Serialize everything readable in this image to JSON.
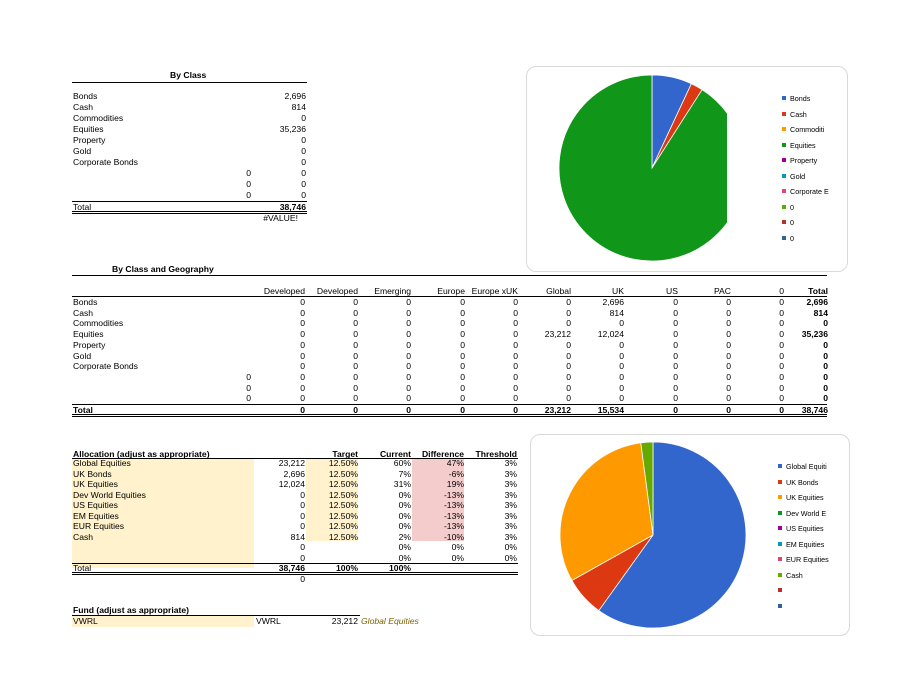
{
  "by_class": {
    "title": "By Class",
    "rows": [
      {
        "label": "Bonds",
        "value": "2,696"
      },
      {
        "label": "Cash",
        "value": "814"
      },
      {
        "label": "Commodities",
        "value": "0"
      },
      {
        "label": "Equities",
        "value": "35,236"
      },
      {
        "label": "Property",
        "value": "0"
      },
      {
        "label": "Gold",
        "value": "0"
      },
      {
        "label": "Corporate Bonds",
        "value": "0"
      },
      {
        "label": "0",
        "value": "0"
      },
      {
        "label": "0",
        "value": "0"
      },
      {
        "label": "0",
        "value": "0"
      }
    ],
    "total_label": "Total",
    "total_value": "38,746",
    "error": "#VALUE!"
  },
  "chart1": {
    "legend": [
      "Bonds",
      "Cash",
      "Commoditi",
      "Equities",
      "Property",
      "Gold",
      "Corporate E",
      "0",
      "0",
      "0"
    ],
    "colors": [
      "#3366cc",
      "#dc3912",
      "#ff9900",
      "#109618",
      "#990099",
      "#0099c6",
      "#dd4477",
      "#66aa00",
      "#b82e2e",
      "#316395"
    ]
  },
  "by_geo": {
    "title": "By Class and Geography",
    "headers": [
      "Developed",
      "Developed",
      "Emerging",
      "Europe",
      "Europe xUK",
      "Global",
      "UK",
      "US",
      "PAC",
      "0",
      "Total"
    ],
    "rows": [
      {
        "label": "Bonds",
        "cells": [
          "0",
          "0",
          "0",
          "0",
          "0",
          "0",
          "2,696",
          "0",
          "0",
          "0",
          "2,696"
        ]
      },
      {
        "label": "Cash",
        "cells": [
          "0",
          "0",
          "0",
          "0",
          "0",
          "0",
          "814",
          "0",
          "0",
          "0",
          "814"
        ]
      },
      {
        "label": "Commodities",
        "cells": [
          "0",
          "0",
          "0",
          "0",
          "0",
          "0",
          "0",
          "0",
          "0",
          "0",
          "0"
        ]
      },
      {
        "label": "Equities",
        "cells": [
          "0",
          "0",
          "0",
          "0",
          "0",
          "23,212",
          "12,024",
          "0",
          "0",
          "0",
          "35,236"
        ]
      },
      {
        "label": "Property",
        "cells": [
          "0",
          "0",
          "0",
          "0",
          "0",
          "0",
          "0",
          "0",
          "0",
          "0",
          "0"
        ]
      },
      {
        "label": "Gold",
        "cells": [
          "0",
          "0",
          "0",
          "0",
          "0",
          "0",
          "0",
          "0",
          "0",
          "0",
          "0"
        ]
      },
      {
        "label": "Corporate Bonds",
        "cells": [
          "0",
          "0",
          "0",
          "0",
          "0",
          "0",
          "0",
          "0",
          "0",
          "0",
          "0"
        ]
      },
      {
        "label": "0",
        "cells": [
          "0",
          "0",
          "0",
          "0",
          "0",
          "0",
          "0",
          "0",
          "0",
          "0",
          "0"
        ]
      },
      {
        "label": "0",
        "cells": [
          "0",
          "0",
          "0",
          "0",
          "0",
          "0",
          "0",
          "0",
          "0",
          "0",
          "0"
        ]
      },
      {
        "label": "0",
        "cells": [
          "0",
          "0",
          "0",
          "0",
          "0",
          "0",
          "0",
          "0",
          "0",
          "0",
          "0"
        ]
      }
    ],
    "total_label": "Total",
    "total_cells": [
      "0",
      "0",
      "0",
      "0",
      "0",
      "23,212",
      "15,534",
      "0",
      "0",
      "0",
      "38,746"
    ]
  },
  "allocation": {
    "title": "Allocation (adjust as appropriate)",
    "headers": {
      "target": "Target",
      "current": "Current",
      "difference": "Difference",
      "threshold": "Threshold"
    },
    "rows": [
      {
        "label": "Global Equities",
        "value": "23,212",
        "target": "12.50%",
        "current": "60%",
        "difference": "47%",
        "threshold": "3%"
      },
      {
        "label": "UK Bonds",
        "value": "2,696",
        "target": "12.50%",
        "current": "7%",
        "difference": "-6%",
        "threshold": "3%"
      },
      {
        "label": "UK Equities",
        "value": "12,024",
        "target": "12.50%",
        "current": "31%",
        "difference": "19%",
        "threshold": "3%"
      },
      {
        "label": "Dev World Equities",
        "value": "0",
        "target": "12.50%",
        "current": "0%",
        "difference": "-13%",
        "threshold": "3%"
      },
      {
        "label": "US Equities",
        "value": "0",
        "target": "12.50%",
        "current": "0%",
        "difference": "-13%",
        "threshold": "3%"
      },
      {
        "label": "EM Equities",
        "value": "0",
        "target": "12.50%",
        "current": "0%",
        "difference": "-13%",
        "threshold": "3%"
      },
      {
        "label": "EUR Equities",
        "value": "0",
        "target": "12.50%",
        "current": "0%",
        "difference": "-13%",
        "threshold": "3%"
      },
      {
        "label": "Cash",
        "value": "814",
        "target": "12.50%",
        "current": "2%",
        "difference": "-10%",
        "threshold": "3%"
      },
      {
        "label": "",
        "value": "0",
        "target": "",
        "current": "0%",
        "difference": "0%",
        "threshold": "0%"
      },
      {
        "label": "",
        "value": "0",
        "target": "",
        "current": "0%",
        "difference": "0%",
        "threshold": "0%"
      }
    ],
    "total_label": "Total",
    "total_value": "38,746",
    "total_target": "100%",
    "total_current": "100%",
    "below_total": "0"
  },
  "chart2": {
    "legend": [
      "Global Equiti",
      "UK Bonds",
      "UK Equities",
      "Dev World E",
      "US Equities",
      "EM Equities",
      "EUR Equities",
      "Cash",
      "",
      ""
    ],
    "colors": [
      "#3366cc",
      "#dc3912",
      "#ff9900",
      "#109618",
      "#990099",
      "#0099c6",
      "#dd4477",
      "#66aa00",
      "#b82e2e",
      "#316395"
    ]
  },
  "fund": {
    "title": "Fund (adjust as appropriate)",
    "row": {
      "name": "VWRL",
      "ticker": "VWRL",
      "value": "23,212",
      "class": "Global Equities"
    }
  },
  "chart_data": [
    {
      "type": "pie",
      "title": "",
      "categories": [
        "Bonds",
        "Cash",
        "Commodities",
        "Equities",
        "Property",
        "Gold",
        "Corporate Bonds",
        "0",
        "0",
        "0"
      ],
      "values": [
        2696,
        814,
        0,
        35236,
        0,
        0,
        0,
        0,
        0,
        0
      ],
      "legend": "right"
    },
    {
      "type": "pie",
      "title": "",
      "categories": [
        "Global Equities",
        "UK Bonds",
        "UK Equities",
        "Dev World Equities",
        "US Equities",
        "EM Equities",
        "EUR Equities",
        "Cash",
        "",
        ""
      ],
      "values": [
        23212,
        2696,
        12024,
        0,
        0,
        0,
        0,
        814,
        0,
        0
      ],
      "legend": "right"
    }
  ]
}
